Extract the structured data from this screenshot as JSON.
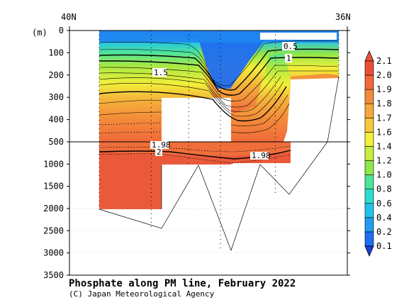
{
  "title": "Phosphate along PM line, February 2022",
  "credit": "(C) Japan Meteorological Agency",
  "chart_data": {
    "type": "heatmap",
    "title": "Phosphate along PM line, February 2022",
    "x_labels": [
      "40N",
      "36N"
    ],
    "y_unit": "(m)",
    "y_ticks_upper": [
      0,
      100,
      200,
      300,
      400,
      500
    ],
    "y_ticks_lower": [
      1000,
      1500,
      2000,
      2500,
      3000,
      3500
    ],
    "y_break": 500,
    "y_range_upper": [
      0,
      500
    ],
    "y_range_lower": [
      500,
      3500
    ],
    "colorbar": {
      "levels": [
        "0.1",
        "0.2",
        "0.4",
        "0.6",
        "0.8",
        "1.0",
        "1.2",
        "1.4",
        "1.6",
        "1.7",
        "1.8",
        "1.9",
        "2.0",
        "2.1"
      ],
      "colors": [
        "#1a3ed8",
        "#1f6df0",
        "#1f9df0",
        "#22c3ea",
        "#2edccf",
        "#4ee39a",
        "#8fe64a",
        "#c9ec3e",
        "#f2ef3a",
        "#f6c93a",
        "#f5a83a",
        "#f38a3a",
        "#ef6a3a",
        "#ea4e34",
        "#e8553a"
      ]
    },
    "contour_labels": [
      "0.5",
      "1",
      "1.5",
      "1.98",
      "2",
      "1.98"
    ],
    "stations_x": [
      0.13,
      0.31,
      0.44,
      0.55,
      0.74,
      0.96
    ]
  }
}
